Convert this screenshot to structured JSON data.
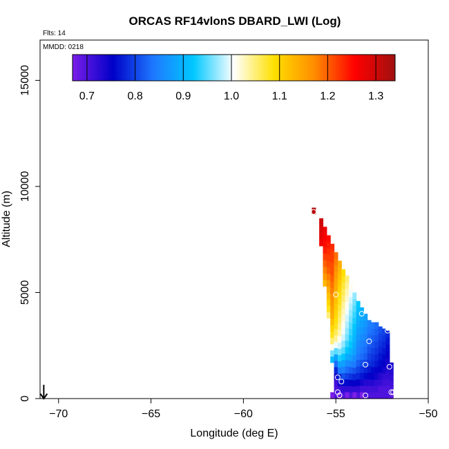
{
  "chart_data": {
    "type": "heatmap",
    "title": "ORCAS RF14vlonS DBARD_LWI (Log)",
    "xlabel": "Longitude (deg E)",
    "ylabel": "Altitude (m)",
    "xlim": [
      -71,
      -50
    ],
    "ylim": [
      0,
      16900
    ],
    "xticks": [
      -70,
      -65,
      -60,
      -55,
      -50
    ],
    "yticks": [
      0,
      5000,
      10000,
      15000
    ],
    "annotations": {
      "flights": "Flts: 14",
      "date": "MMDD: 0218"
    },
    "colorbar": {
      "range": [
        0.67,
        1.34
      ],
      "ticks": [
        0.7,
        0.8,
        0.9,
        1.0,
        1.1,
        1.2,
        1.3
      ],
      "colors": [
        "#7a1ee8",
        "#0000c8",
        "#1e78ff",
        "#00c8ff",
        "#ffffff",
        "#ffe000",
        "#ff8c00",
        "#ff0000",
        "#a01010"
      ],
      "placement": "top"
    },
    "cell_size": {
      "lon": 0.2,
      "alt": 300
    },
    "columns": [
      {
        "lon": -56.2,
        "bottom": 8700,
        "top": 9000,
        "values": [
          1.32
        ]
      },
      {
        "lon": -55.8,
        "bottom": 7200,
        "top": 8500,
        "values": [
          1.27,
          1.28,
          1.29,
          1.3
        ]
      },
      {
        "lon": -55.6,
        "bottom": 5300,
        "top": 8100,
        "values": [
          1.13,
          1.16,
          1.18,
          1.2,
          1.22,
          1.24,
          1.25,
          1.26,
          1.27
        ]
      },
      {
        "lon": -55.4,
        "bottom": 3800,
        "top": 7700,
        "values": [
          1.05,
          1.08,
          1.1,
          1.12,
          1.14,
          1.16,
          1.18,
          1.2,
          1.21,
          1.22,
          1.23,
          1.24,
          1.25
        ]
      },
      {
        "lon": -55.2,
        "bottom": 1700,
        "top": 7300,
        "values": [
          0.91,
          0.96,
          1.01,
          1.05,
          1.08,
          1.1,
          1.12,
          1.14,
          1.15,
          1.16,
          1.17,
          1.18,
          1.19,
          1.2,
          1.21,
          1.21,
          1.22,
          1.22,
          1.23
        ]
      },
      {
        "lon": -55.0,
        "bottom": 0,
        "top": 6900,
        "values": [
          0.7,
          0.7,
          0.71,
          0.74,
          0.78,
          0.83,
          0.88,
          0.95,
          1.0,
          1.04,
          1.06,
          1.08,
          1.09,
          1.1,
          1.11,
          1.12,
          1.13,
          1.14,
          1.15,
          1.16,
          1.17,
          1.18,
          1.19
        ]
      },
      {
        "lon": -54.8,
        "bottom": 0,
        "top": 6500,
        "values": [
          0.7,
          0.71,
          0.74,
          0.78,
          0.84,
          0.88,
          0.93,
          0.96,
          0.99,
          1.01,
          1.03,
          1.04,
          1.05,
          1.06,
          1.07,
          1.08,
          1.09,
          1.1,
          1.11,
          1.12,
          1.13,
          1.14
        ]
      },
      {
        "lon": -54.6,
        "bottom": 0,
        "top": 6100,
        "values": [
          0.7,
          0.72,
          0.76,
          0.81,
          0.85,
          0.88,
          0.92,
          0.95,
          0.97,
          0.99,
          1.0,
          1.01,
          1.02,
          1.03,
          1.04,
          1.05,
          1.06,
          1.07,
          1.08,
          1.09
        ]
      },
      {
        "lon": -54.4,
        "bottom": 0,
        "top": 5800,
        "values": [
          0.7,
          0.72,
          0.76,
          0.8,
          0.83,
          0.86,
          0.89,
          0.92,
          0.94,
          0.96,
          0.97,
          0.98,
          0.99,
          1.0,
          1.01,
          1.02,
          1.03,
          1.04,
          1.05
        ]
      },
      {
        "lon": -54.2,
        "bottom": 0,
        "top": 5400,
        "values": [
          0.7,
          0.72,
          0.75,
          0.79,
          0.82,
          0.85,
          0.88,
          0.9,
          0.92,
          0.93,
          0.94,
          0.95,
          0.96,
          0.97,
          0.98,
          0.99,
          1.0,
          1.01
        ]
      },
      {
        "lon": -54.0,
        "bottom": 0,
        "top": 5000,
        "values": [
          0.7,
          0.72,
          0.75,
          0.78,
          0.81,
          0.84,
          0.86,
          0.88,
          0.89,
          0.9,
          0.91,
          0.92,
          0.93,
          0.94,
          0.95,
          0.96,
          0.97
        ]
      },
      {
        "lon": -53.8,
        "bottom": 0,
        "top": 4600,
        "values": [
          0.7,
          0.72,
          0.75,
          0.78,
          0.8,
          0.82,
          0.84,
          0.85,
          0.86,
          0.87,
          0.88,
          0.89,
          0.9,
          0.91,
          0.92
        ]
      },
      {
        "lon": -53.6,
        "bottom": 0,
        "top": 4300,
        "values": [
          0.7,
          0.71,
          0.74,
          0.77,
          0.79,
          0.81,
          0.83,
          0.84,
          0.85,
          0.86,
          0.87,
          0.88,
          0.89,
          0.9
        ]
      },
      {
        "lon": -53.4,
        "bottom": 0,
        "top": 4000,
        "values": [
          0.7,
          0.71,
          0.73,
          0.76,
          0.78,
          0.8,
          0.82,
          0.83,
          0.84,
          0.85,
          0.86,
          0.87,
          0.88
        ]
      },
      {
        "lon": -53.2,
        "bottom": 0,
        "top": 3700,
        "values": [
          0.7,
          0.71,
          0.73,
          0.75,
          0.77,
          0.79,
          0.8,
          0.81,
          0.82,
          0.83,
          0.84,
          0.85
        ]
      },
      {
        "lon": -53.0,
        "bottom": 0,
        "top": 3600,
        "values": [
          0.7,
          0.71,
          0.73,
          0.75,
          0.76,
          0.78,
          0.79,
          0.8,
          0.81,
          0.82,
          0.83,
          0.84
        ]
      },
      {
        "lon": -52.8,
        "bottom": 0,
        "top": 3600,
        "values": [
          0.7,
          0.71,
          0.72,
          0.74,
          0.75,
          0.77,
          0.78,
          0.79,
          0.8,
          0.81,
          0.82,
          0.83
        ]
      },
      {
        "lon": -52.6,
        "bottom": 0,
        "top": 3400,
        "values": [
          0.7,
          0.7,
          0.72,
          0.73,
          0.75,
          0.76,
          0.77,
          0.78,
          0.79,
          0.8,
          0.81
        ]
      },
      {
        "lon": -52.4,
        "bottom": 0,
        "top": 3300,
        "values": [
          0.7,
          0.7,
          0.71,
          0.72,
          0.74,
          0.75,
          0.76,
          0.77,
          0.78,
          0.79,
          0.8
        ]
      },
      {
        "lon": -52.2,
        "bottom": 0,
        "top": 3200,
        "values": [
          0.7,
          0.7,
          0.71,
          0.72,
          0.73,
          0.74,
          0.75,
          0.76,
          0.77,
          0.78
        ]
      },
      {
        "lon": -52.0,
        "bottom": 0,
        "top": 1700,
        "values": [
          0.69,
          0.7,
          0.71,
          0.72,
          0.73,
          0.74
        ]
      },
      {
        "lon": -55.2,
        "bottom": 0,
        "top": 300,
        "values": [
          0.66
        ]
      },
      {
        "lon": -54.8,
        "bottom": 0,
        "top": 300,
        "values": [
          0.66
        ]
      },
      {
        "lon": -54.4,
        "bottom": 0,
        "top": 300,
        "values": [
          0.67
        ]
      },
      {
        "lon": -54.0,
        "bottom": 0,
        "top": 300,
        "values": [
          0.67
        ]
      },
      {
        "lon": -53.6,
        "bottom": 0,
        "top": 300,
        "values": [
          0.67
        ]
      }
    ],
    "markers": [
      {
        "lon": -56.2,
        "alt": 8800
      },
      {
        "lon": -55.0,
        "alt": 4900
      },
      {
        "lon": -53.6,
        "alt": 4000
      },
      {
        "lon": -52.2,
        "alt": 3200
      },
      {
        "lon": -53.2,
        "alt": 2700
      },
      {
        "lon": -53.4,
        "alt": 1600
      },
      {
        "lon": -52.1,
        "alt": 1500
      },
      {
        "lon": -54.9,
        "alt": 1000
      },
      {
        "lon": -54.7,
        "alt": 800
      },
      {
        "lon": -54.9,
        "alt": 300
      },
      {
        "lon": -54.8,
        "alt": 150
      },
      {
        "lon": -53.4,
        "alt": 150
      },
      {
        "lon": -52.0,
        "alt": 300
      },
      {
        "lon": -51.9,
        "alt": 300
      }
    ],
    "arrow": {
      "lon": -70.8,
      "from_alt": 650,
      "to_alt": 0
    }
  }
}
